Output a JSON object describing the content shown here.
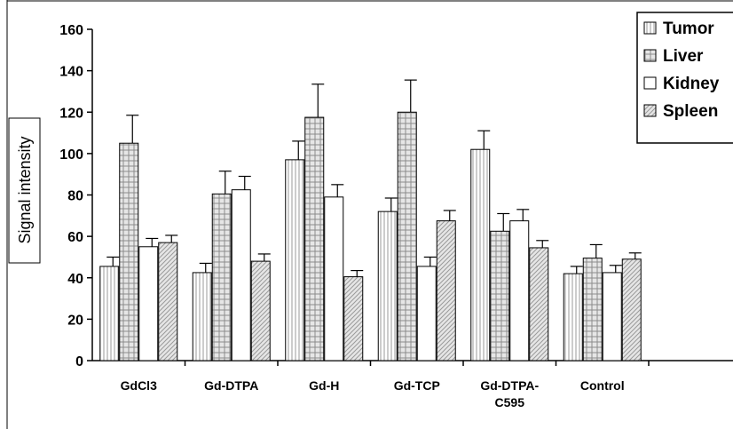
{
  "chart_data": {
    "type": "bar",
    "title": "",
    "xlabel": "",
    "ylabel": "Signal intensity",
    "ylim": [
      0,
      160
    ],
    "yticks": [
      0,
      20,
      40,
      60,
      80,
      100,
      120,
      140,
      160
    ],
    "grid": false,
    "legend_position": "top-right",
    "categories": [
      [
        "GdCl3"
      ],
      [
        "Gd-DTPA"
      ],
      [
        "Gd-H"
      ],
      [
        "Gd-TCP"
      ],
      [
        "Gd-DTPA-",
        "C595"
      ],
      [
        "Control"
      ]
    ],
    "series": [
      {
        "name": "Tumor",
        "values": [
          45.5,
          42.5,
          97,
          72,
          102,
          42
        ],
        "errors": [
          4.5,
          4.5,
          9,
          6.5,
          9,
          3.5
        ],
        "fill": "#ffffff",
        "pattern": "vertical-lines"
      },
      {
        "name": "Liver",
        "values": [
          105,
          80.5,
          117.5,
          120,
          62.5,
          49.5
        ],
        "errors": [
          13.5,
          11,
          16,
          15.5,
          8.5,
          6.5
        ],
        "fill": "#bdbdbd",
        "pattern": "grid"
      },
      {
        "name": "Kidney",
        "values": [
          55,
          82.5,
          79,
          45.5,
          67.5,
          42.5
        ],
        "errors": [
          4,
          6.5,
          6,
          4.5,
          5.5,
          3.5
        ],
        "fill": "#ffffff",
        "pattern": "none"
      },
      {
        "name": "Spleen",
        "values": [
          57,
          48,
          40.5,
          67.5,
          54.5,
          49
        ],
        "errors": [
          3.5,
          3.5,
          3,
          5,
          3.5,
          3
        ],
        "fill": "#d3d3d3",
        "pattern": "diagonal"
      }
    ]
  }
}
